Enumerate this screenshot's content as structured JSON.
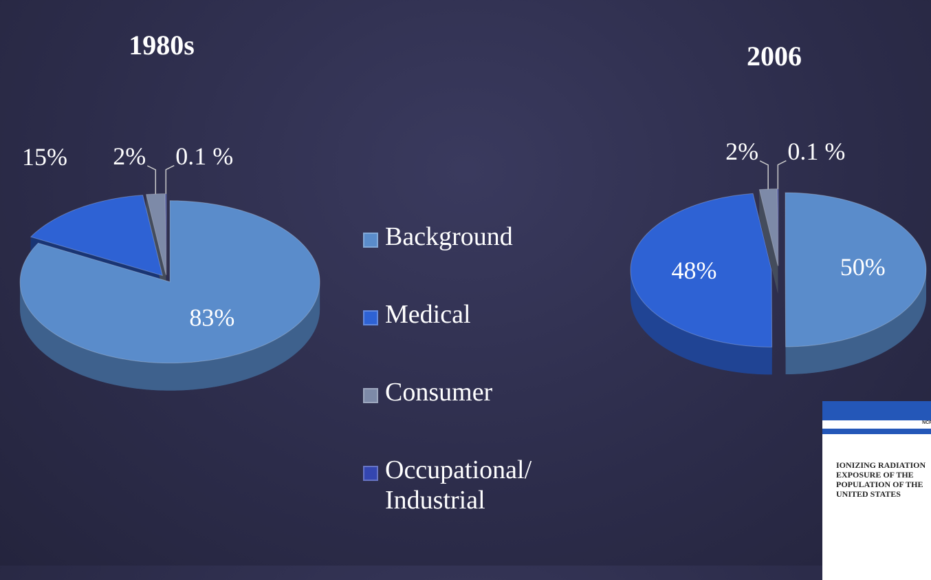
{
  "legend": {
    "categories": [
      "Background",
      "Medical",
      "Consumer",
      "Occupational/ Industrial"
    ],
    "colors": [
      "#5a8ccb",
      "#2e62d4",
      "#7d8aa8",
      "#3446b0"
    ]
  },
  "chart_data": [
    {
      "type": "pie",
      "title": "1980s",
      "values": [
        83,
        15,
        2,
        0.1
      ],
      "value_labels": [
        "83%",
        "15%",
        "2%",
        "0.1 %"
      ]
    },
    {
      "type": "pie",
      "title": "2006",
      "values": [
        50,
        48,
        2,
        0.1
      ],
      "value_labels": [
        "50%",
        "48%",
        "2%",
        "0.1 %"
      ]
    }
  ],
  "report": {
    "header": "NCRP REPORT",
    "title": "IONIZING RADIATION EXPOSURE OF THE POPULATION OF THE UNITED STATES"
  }
}
